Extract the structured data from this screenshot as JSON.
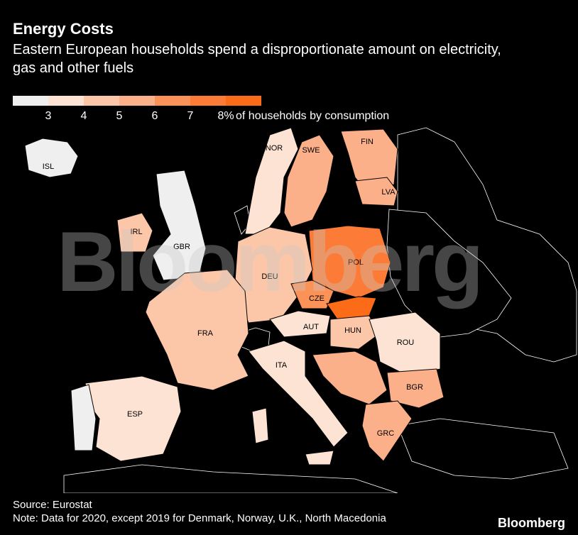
{
  "header": {
    "title": "Energy Costs",
    "subtitle": "Eastern European households spend a disproportionate amount on electricity, gas and other fuels"
  },
  "legend": {
    "ticks": [
      "3",
      "4",
      "5",
      "6",
      "7",
      "8%"
    ],
    "unit_label": "of households by consumption",
    "colors": [
      "#efefef",
      "#fde3d3",
      "#fcc7a8",
      "#fcb08a",
      "#fb9359",
      "#fb7b37",
      "#fc6c18"
    ]
  },
  "watermark": "Bloomberg",
  "footer": {
    "source": "Source: Eurostat",
    "note": "Note: Data for 2020, except 2019 for Denmark, Norway, U.K., North Macedonia",
    "brand": "Bloomberg"
  },
  "countries": [
    {
      "code": "ISL",
      "color": "#efefef"
    },
    {
      "code": "NOR",
      "color": "#fde3d3"
    },
    {
      "code": "SWE",
      "color": "#fcb08a"
    },
    {
      "code": "FIN",
      "color": "#fcb08a"
    },
    {
      "code": "LVA",
      "color": "#fcb08a"
    },
    {
      "code": "IRL",
      "color": "#fcc7a8"
    },
    {
      "code": "GBR",
      "color": "#efefef"
    },
    {
      "code": "POL",
      "color": "#fb7b37"
    },
    {
      "code": "DEU",
      "color": "#fcc7a8"
    },
    {
      "code": "CZE",
      "color": "#fb9359"
    },
    {
      "code": "AUT",
      "color": "#fde3d3"
    },
    {
      "code": "HUN",
      "color": "#fcc7a8"
    },
    {
      "code": "FRA",
      "color": "#fcc7a8"
    },
    {
      "code": "ROU",
      "color": "#fde3d3"
    },
    {
      "code": "ITA",
      "color": "#fde3d3"
    },
    {
      "code": "BGR",
      "color": "#fcb08a"
    },
    {
      "code": "ESP",
      "color": "#fde3d3"
    },
    {
      "code": "GRC",
      "color": "#fcb08a"
    }
  ]
}
